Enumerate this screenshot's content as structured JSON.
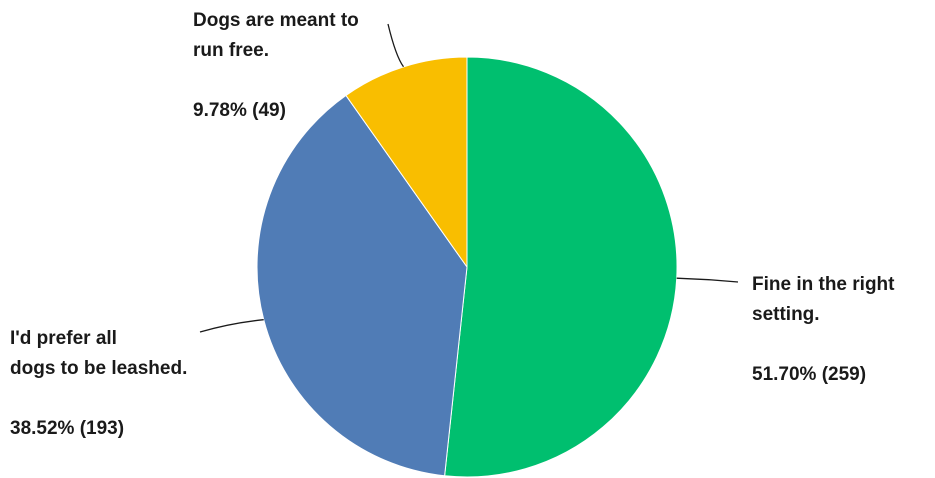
{
  "chart_data": {
    "type": "pie",
    "slices": [
      {
        "label_lines": [
          "Fine in the right",
          "setting."
        ],
        "percent_label": "51.70% (259)",
        "percent": 51.7,
        "count": 259,
        "color": "#00bf6f"
      },
      {
        "label_lines": [
          "I'd prefer all",
          "dogs to be leashed."
        ],
        "percent_label": "38.52% (193)",
        "percent": 38.52,
        "count": 193,
        "color": "#507cb6"
      },
      {
        "label_lines": [
          "Dogs are meant to",
          "run free."
        ],
        "percent_label": "9.78% (49)",
        "percent": 9.78,
        "count": 49,
        "color": "#f9be00"
      }
    ],
    "start_angle_deg": 0,
    "direction": "clockwise",
    "legend": "none"
  }
}
